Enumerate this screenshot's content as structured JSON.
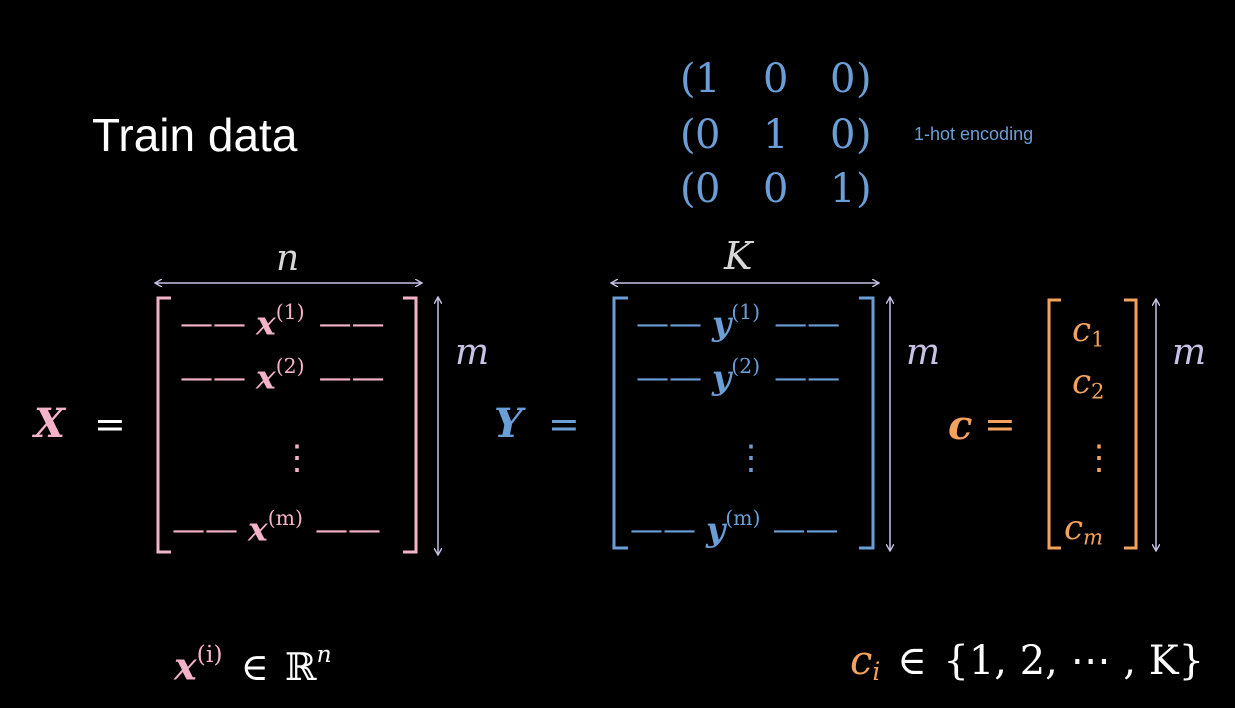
{
  "title": "Train data",
  "one_hot": {
    "caption": "1-hot encoding",
    "rows": [
      [
        "1",
        "0",
        "0"
      ],
      [
        "0",
        "1",
        "0"
      ],
      [
        "0",
        "0",
        "1"
      ]
    ]
  },
  "matrix_x": {
    "symbol": "X",
    "equals": "=",
    "width_label": "n",
    "height_label": "m",
    "rows": [
      {
        "base": "x",
        "sup": "(1)"
      },
      {
        "base": "x",
        "sup": "(2)"
      },
      {
        "base": "x",
        "sup": "(m)"
      }
    ],
    "dots": "⋮",
    "dash": "——",
    "color": "#f4b3c8"
  },
  "matrix_y": {
    "symbol": "Y",
    "equals": "=",
    "width_label": "K",
    "height_label": "m",
    "rows": [
      {
        "base": "y",
        "sup": "(1)"
      },
      {
        "base": "y",
        "sup": "(2)"
      },
      {
        "base": "y",
        "sup": "(m)"
      }
    ],
    "dots": "⋮",
    "dash": "——",
    "color": "#6b9ed6"
  },
  "vector_c": {
    "symbol": "c",
    "equals": "=",
    "height_label": "m",
    "entries": [
      {
        "base": "c",
        "sub": "1"
      },
      {
        "base": "c",
        "sub": "2"
      },
      {
        "base": "c",
        "sub": "m"
      }
    ],
    "dots": "⋮",
    "color": "#f5a25d"
  },
  "formula_x": {
    "base": "x",
    "sup": "(i)",
    "rel": "∈",
    "set": "ℝ",
    "set_sup": "n"
  },
  "formula_c": {
    "base": "c",
    "sub": "i",
    "rel": "∈",
    "set": "{1, 2, ⋯ , K}"
  },
  "colors": {
    "background": "#000000",
    "pink": "#f4b3c8",
    "blue": "#6b9ed6",
    "orange": "#f5a25d",
    "arrow": "#c9c2e6"
  }
}
